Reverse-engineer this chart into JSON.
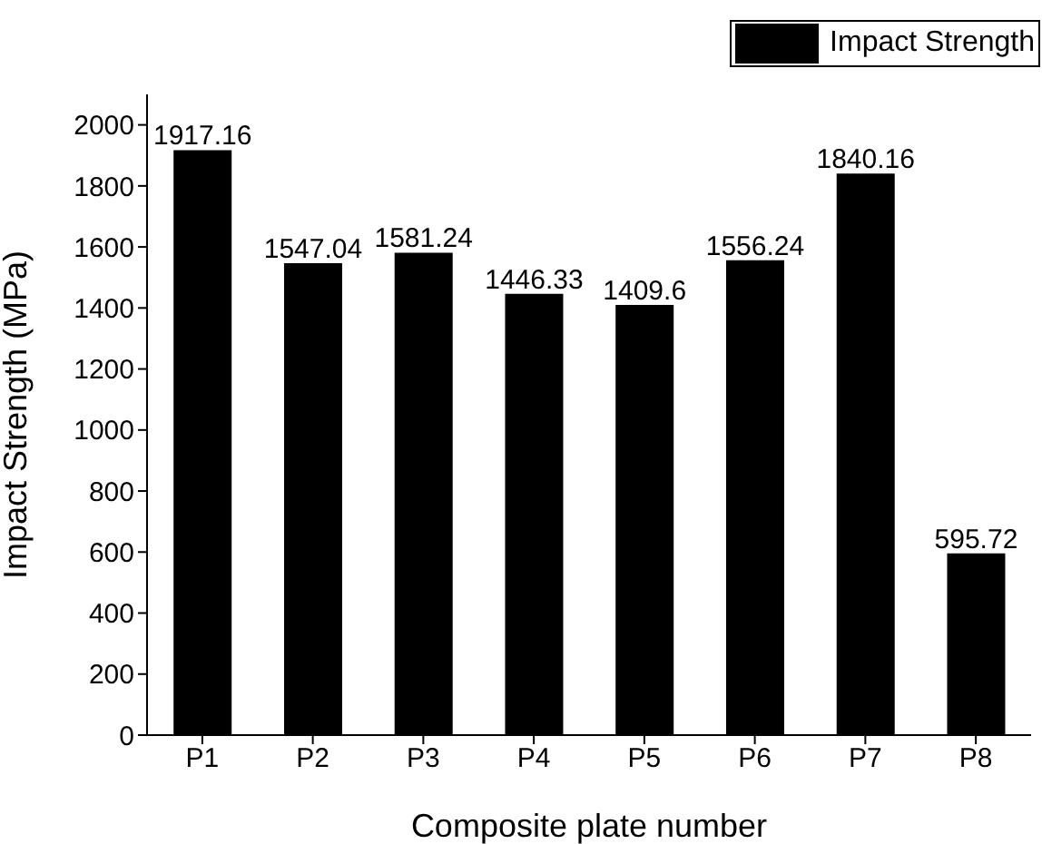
{
  "chart_data": {
    "type": "bar",
    "xlabel": "Composite plate number",
    "ylabel": "Impact Strength (MPa)",
    "categories": [
      "P1",
      "P2",
      "P3",
      "P4",
      "P5",
      "P6",
      "P7",
      "P8"
    ],
    "series": [
      {
        "name": "Impact Strength",
        "color": "#000000",
        "values": [
          1917.16,
          1547.04,
          1581.24,
          1446.33,
          1409.6,
          1556.24,
          1840.16,
          595.72
        ]
      }
    ],
    "ylim": [
      0,
      2100
    ],
    "yticks": [
      0,
      200,
      400,
      600,
      800,
      1000,
      1200,
      1400,
      1600,
      1800,
      2000
    ],
    "data_labels": true,
    "legend": "top right",
    "grid": false
  }
}
